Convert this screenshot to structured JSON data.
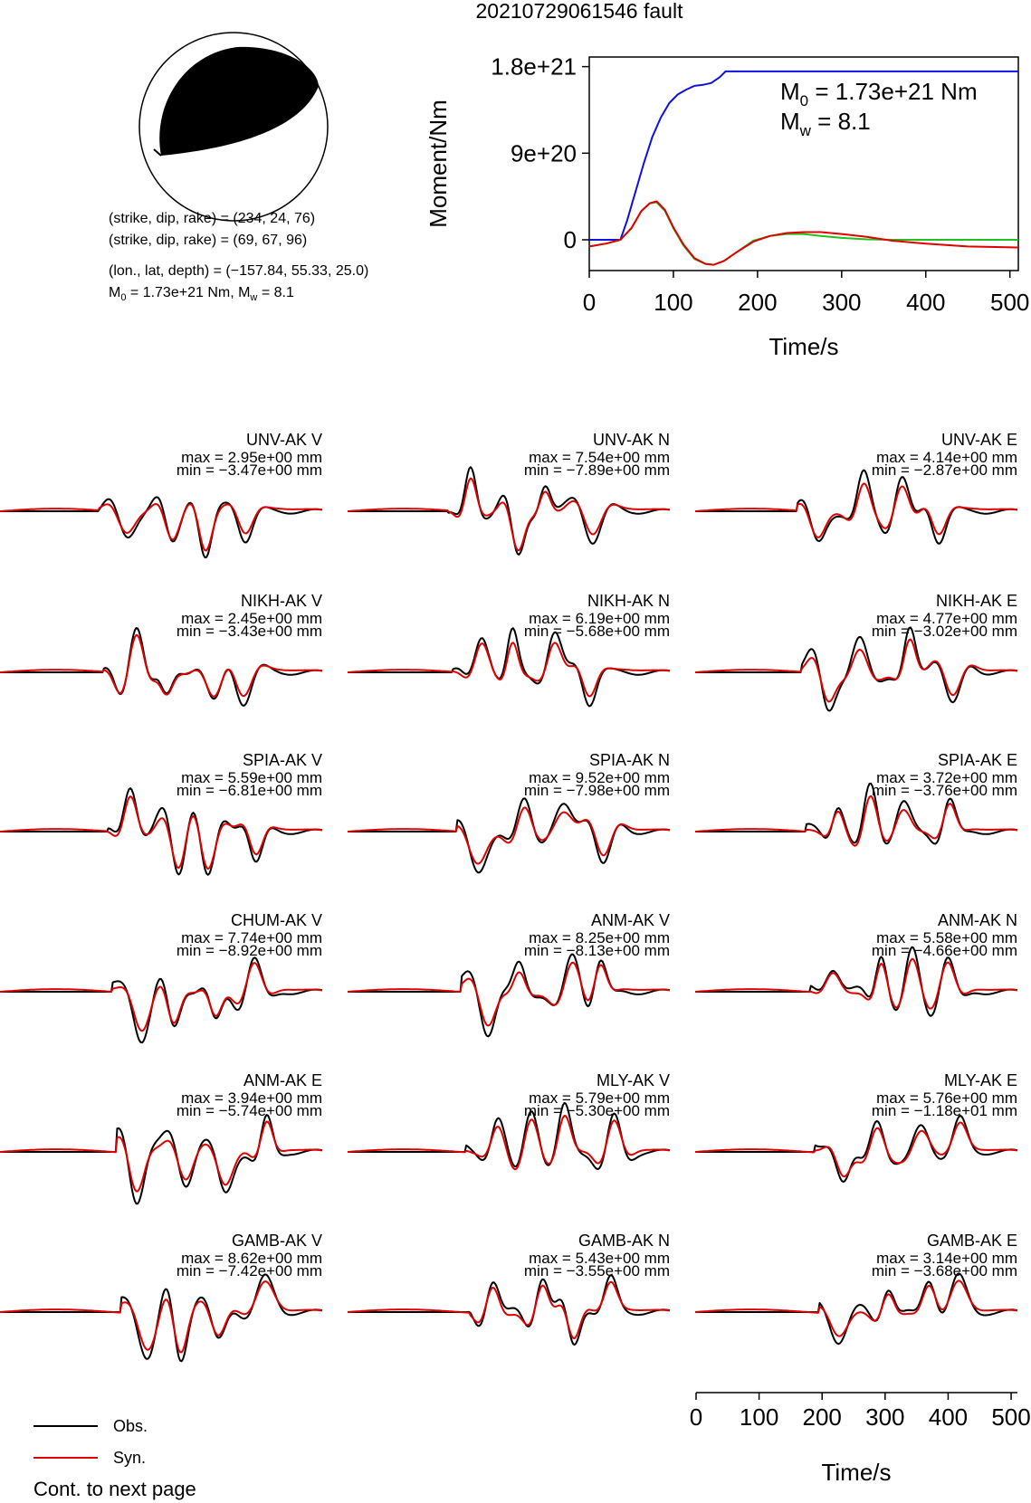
{
  "title": "20210729061546 fault",
  "colors": {
    "observed": "#000000",
    "synthetic": "#e00000",
    "cumulative_moment": "#1010e0",
    "moment_rate_alt": "#20c020",
    "beachball_compression": "#000000"
  },
  "focal_mechanism": {
    "plane1": "(strike, dip, rake) = (234, 24, 76)",
    "plane2": "(strike, dip, rake) = (69, 67, 96)",
    "location": "(lon., lat, depth) = (−157.84, 55.33, 25.0)",
    "moment_prefix": "M",
    "moment_sub": "0",
    "moment_value": " = 1.73e+21 Nm, M",
    "mw_sub": "w",
    "mw_value": " = 8.1"
  },
  "chart_data": [
    {
      "type": "line",
      "name": "moment-function",
      "ylabel": "Moment/Nm",
      "xlabel": "Time/s",
      "xlim": [
        0,
        510
      ],
      "ylim": [
        -3.2e+20,
        1.9e+21
      ],
      "xticks": [
        "0",
        "100",
        "200",
        "300",
        "400",
        "500"
      ],
      "xtick_values": [
        0,
        100,
        200,
        300,
        400,
        500
      ],
      "yticks": [
        "0",
        "9e+20",
        "1.8e+21"
      ],
      "ytick_values": [
        0,
        9e+20,
        1.8e+21
      ],
      "annotation_m0": {
        "prefix": "M",
        "sub": "0",
        "value": " = 1.73e+21 Nm"
      },
      "annotation_mw": {
        "prefix": "M",
        "sub": "w",
        "value": " = 8.1"
      },
      "series": [
        {
          "color_key": "cumulative_moment",
          "x": [
            0,
            37,
            45,
            55,
            65,
            75,
            85,
            95,
            105,
            115,
            125,
            135,
            145,
            155,
            162,
            300,
            510
          ],
          "y": [
            0,
            0,
            2e+20,
            5e+20,
            8e+20,
            1.07e+21,
            1.27e+21,
            1.42e+21,
            1.51e+21,
            1.56e+21,
            1.6e+21,
            1.61e+21,
            1.63e+21,
            1.69e+21,
            1.75e+21,
            1.75e+21,
            1.75e+21
          ]
        },
        {
          "color_key": "moment_rate_alt",
          "x": [
            0,
            20,
            37,
            50,
            62,
            72,
            80,
            90,
            100,
            112,
            125,
            138,
            148,
            160,
            175,
            195,
            215,
            235,
            255,
            275,
            300,
            330,
            360,
            400,
            450,
            510
          ],
          "y": [
            -7e+19,
            -4e+19,
            0,
            1.2e+20,
            3e+20,
            3.8e+20,
            3.9e+20,
            3e+20,
            1.2e+20,
            -6e+19,
            -2e+20,
            -2.5e+20,
            -2.6e+20,
            -2.2e+20,
            -1.3e+20,
            -1e+19,
            4e+19,
            6e+19,
            6e+19,
            4e+19,
            2e+19,
            5e+18,
            0,
            0,
            0,
            0
          ]
        },
        {
          "color_key": "synthetic",
          "x": [
            0,
            20,
            37,
            50,
            62,
            72,
            80,
            90,
            100,
            112,
            125,
            138,
            148,
            160,
            175,
            195,
            215,
            235,
            255,
            275,
            300,
            330,
            360,
            400,
            450,
            510
          ],
          "y": [
            -7e+19,
            -4e+19,
            0,
            1.2e+20,
            3e+20,
            3.8e+20,
            4e+20,
            3.1e+20,
            1.3e+20,
            -5e+19,
            -1.9e+20,
            -2.5e+20,
            -2.6e+20,
            -2.2e+20,
            -1.3e+20,
            -2e+19,
            4e+19,
            7e+19,
            8e+19,
            8e+19,
            6e+19,
            3e+19,
            -1e+19,
            -4e+19,
            -7e+19,
            -8e+19
          ]
        }
      ]
    },
    {
      "type": "line",
      "name": "waveform-time-axis",
      "xlabel": "Time/s",
      "xlim": [
        0,
        510
      ],
      "xticks": [
        "0",
        "100",
        "200",
        "300",
        "400",
        "500"
      ],
      "xtick_values": [
        0,
        100,
        200,
        300,
        400,
        500
      ]
    },
    {
      "type": "line",
      "name": "waveforms",
      "traces": [
        {
          "label": "UNV-AK V",
          "max": "max = 2.95e+00 mm",
          "min": "min = −3.47e+00 mm"
        },
        {
          "label": "UNV-AK N",
          "max": "max = 7.54e+00 mm",
          "min": "min = −7.89e+00 mm"
        },
        {
          "label": "UNV-AK E",
          "max": "max = 4.14e+00 mm",
          "min": "min = −2.87e+00 mm"
        },
        {
          "label": "NIKH-AK V",
          "max": "max = 2.45e+00 mm",
          "min": "min = −3.43e+00 mm"
        },
        {
          "label": "NIKH-AK N",
          "max": "max = 6.19e+00 mm",
          "min": "min = −5.68e+00 mm"
        },
        {
          "label": "NIKH-AK E",
          "max": "max = 4.77e+00 mm",
          "min": "min = −3.02e+00 mm"
        },
        {
          "label": "SPIA-AK V",
          "max": "max = 5.59e+00 mm",
          "min": "min = −6.81e+00 mm"
        },
        {
          "label": "SPIA-AK N",
          "max": "max = 9.52e+00 mm",
          "min": "min = −7.98e+00 mm"
        },
        {
          "label": "SPIA-AK E",
          "max": "max = 3.72e+00 mm",
          "min": "min = −3.76e+00 mm"
        },
        {
          "label": "CHUM-AK V",
          "max": "max = 7.74e+00 mm",
          "min": "min = −8.92e+00 mm"
        },
        {
          "label": "ANM-AK V",
          "max": "max = 8.25e+00 mm",
          "min": "min = −8.13e+00 mm"
        },
        {
          "label": "ANM-AK N",
          "max": "max = 5.58e+00 mm",
          "min": "min = −4.66e+00 mm"
        },
        {
          "label": "ANM-AK E",
          "max": "max = 3.94e+00 mm",
          "min": "min = −5.74e+00 mm"
        },
        {
          "label": "MLY-AK V",
          "max": "max = 5.79e+00 mm",
          "min": "min = −5.30e+00 mm"
        },
        {
          "label": "MLY-AK E",
          "max": "max = 5.76e+00 mm",
          "min": "min = −1.18e+01 mm"
        },
        {
          "label": "GAMB-AK V",
          "max": "max = 8.62e+00 mm",
          "min": "min = −7.42e+00 mm"
        },
        {
          "label": "GAMB-AK N",
          "max": "max = 5.43e+00 mm",
          "min": "min = −3.55e+00 mm"
        },
        {
          "label": "GAMB-AK E",
          "max": "max = 3.14e+00 mm",
          "min": "min = −3.68e+00 mm"
        }
      ]
    }
  ],
  "legend": {
    "observed": "Obs.",
    "synthetic": "Syn."
  },
  "footer": "Cont. to next page"
}
